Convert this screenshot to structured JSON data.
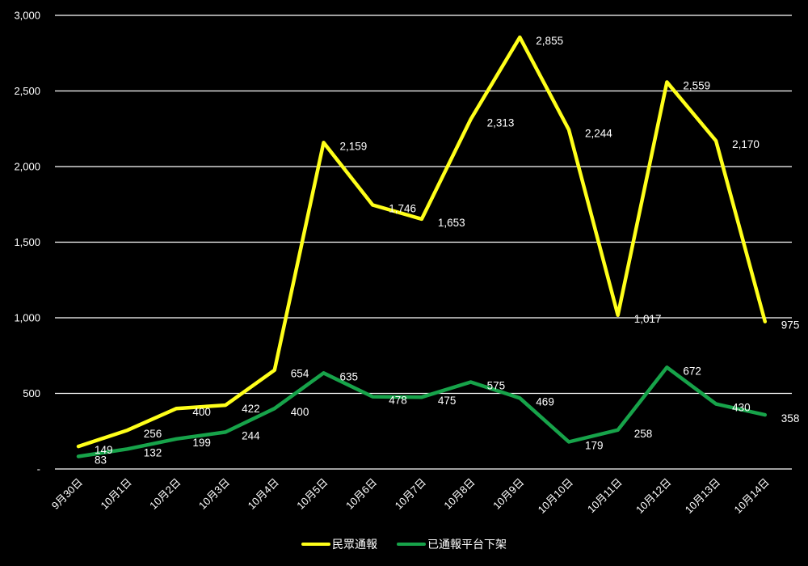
{
  "chart_data": {
    "type": "line",
    "title": "",
    "xlabel": "",
    "ylabel": "",
    "ylim": [
      0,
      3000
    ],
    "yticks": [
      0,
      500,
      1000,
      1500,
      2000,
      2500,
      3000
    ],
    "ytick_labels": [
      "-",
      "500",
      "1,000",
      "1,500",
      "2,000",
      "2,500",
      "3,000"
    ],
    "grid": true,
    "legend_position": "bottom",
    "categories": [
      "9月30日",
      "10月1日",
      "10月2日",
      "10月3日",
      "10月4日",
      "10月5日",
      "10月6日",
      "10月7日",
      "10月8日",
      "10月9日",
      "10月10日",
      "10月11日",
      "10月12日",
      "10月13日",
      "10月14日"
    ],
    "series": [
      {
        "name": "民眾通報",
        "color": "#FFFF1A",
        "values": [
          149,
          256,
          400,
          422,
          654,
          2159,
          1746,
          1653,
          2313,
          2855,
          2244,
          1017,
          2559,
          2170,
          975
        ],
        "labels": [
          "149",
          "256",
          "400",
          "422",
          "654",
          "2,159",
          "1,746",
          "1,653",
          "2,313",
          "2,855",
          "2,244",
          "1,017",
          "2,559",
          "2,170",
          "975"
        ]
      },
      {
        "name": "已通報平台下架",
        "color": "#17A34A",
        "values": [
          83,
          132,
          199,
          244,
          400,
          635,
          478,
          475,
          575,
          469,
          179,
          258,
          672,
          430,
          358
        ],
        "labels": [
          "83",
          "132",
          "199",
          "244",
          "400",
          "635",
          "478",
          "475",
          "575",
          "469",
          "179",
          "258",
          "672",
          "430",
          "358"
        ]
      }
    ]
  },
  "legend": {
    "items": [
      {
        "label": "民眾通報",
        "color": "#FFFF1A"
      },
      {
        "label": "已通報平台下架",
        "color": "#17A34A"
      }
    ]
  },
  "colors": {
    "background": "#000000",
    "gridline": "#FFFFFF",
    "text": "#FFFFFF"
  }
}
